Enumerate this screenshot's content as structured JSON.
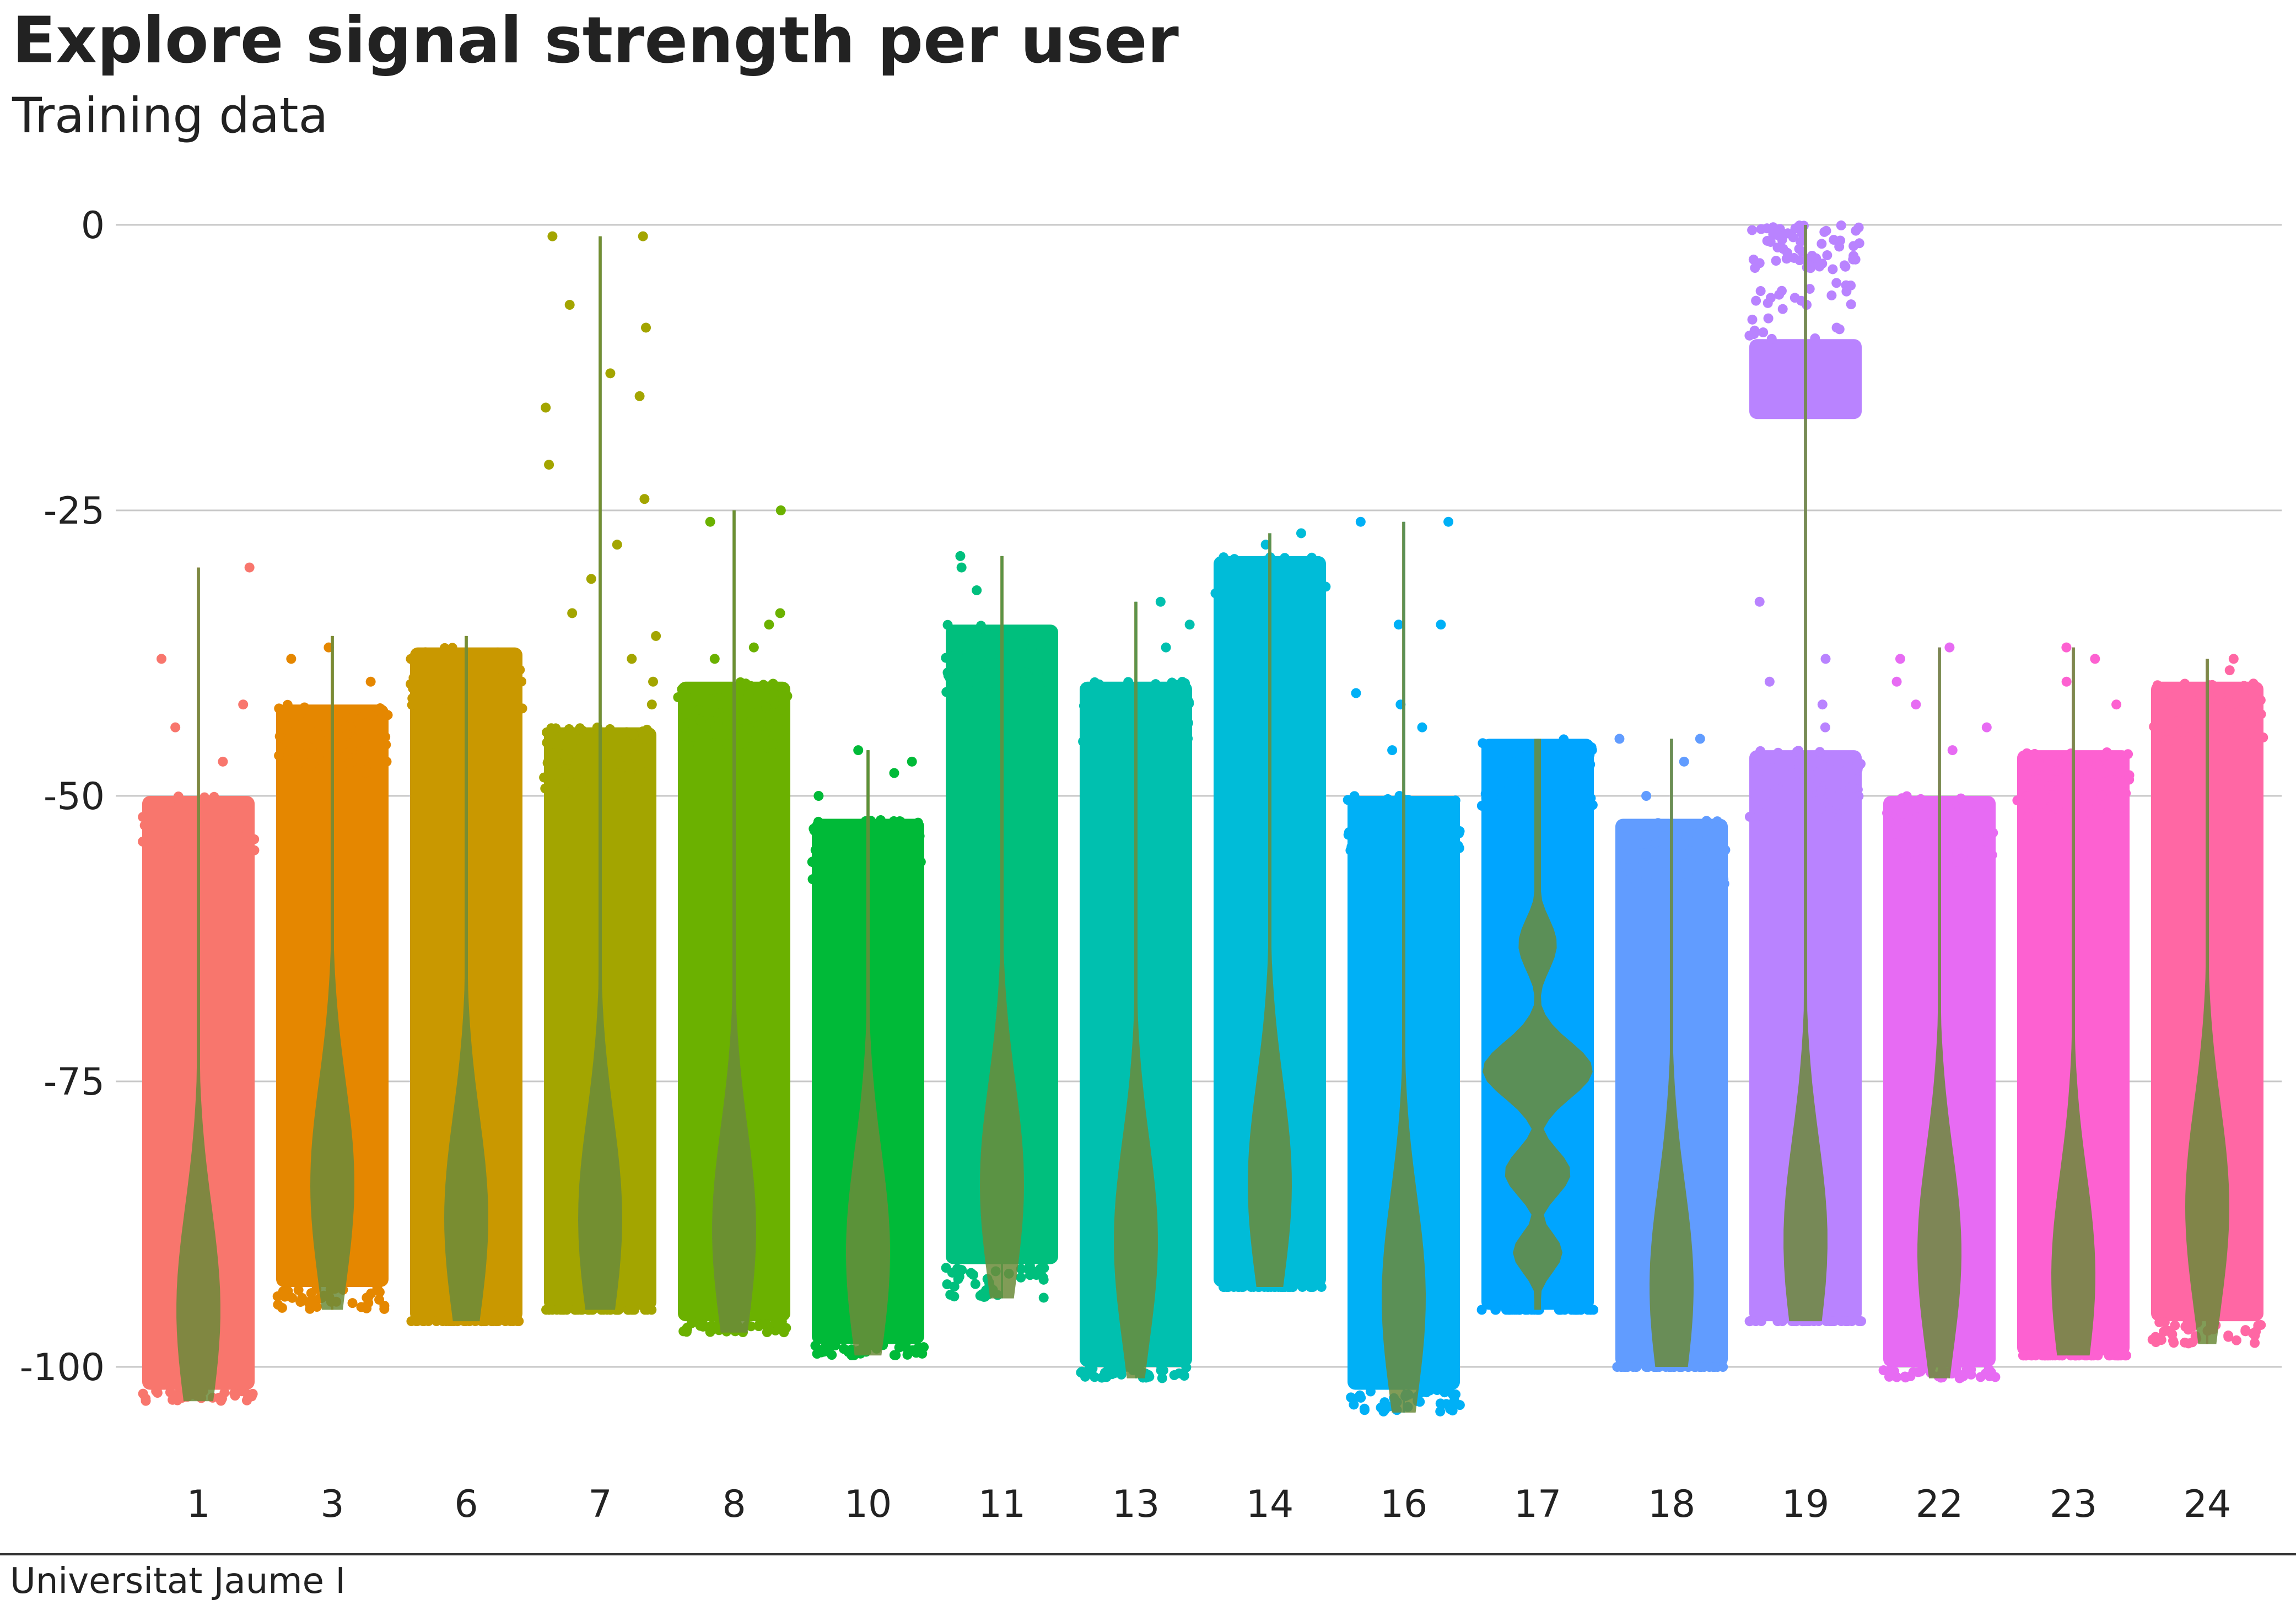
{
  "chart_data": {
    "type": "violin",
    "title": "Explore signal strength per user",
    "subtitle": "Training data",
    "xlabel": "",
    "ylabel": "",
    "caption": "Universitat Jaume I",
    "ylim": [
      -107,
      2
    ],
    "yticks": [
      0,
      -25,
      -50,
      -75,
      -100
    ],
    "categories": [
      "1",
      "3",
      "6",
      "7",
      "8",
      "10",
      "11",
      "13",
      "14",
      "16",
      "17",
      "18",
      "19",
      "22",
      "23",
      "24"
    ],
    "colors": [
      "#F8766D",
      "#E58700",
      "#C99800",
      "#A3A500",
      "#6BB100",
      "#00BA38",
      "#00BF7D",
      "#00C0AF",
      "#00BCD8",
      "#00B0F6",
      "#00A5FF",
      "#619CFF",
      "#B983FF",
      "#E76BF3",
      "#FD61D1",
      "#FF67A4"
    ],
    "violin_color": "#6B8B3A",
    "series": [
      {
        "name": "1",
        "min": -103,
        "max": -30,
        "bulk_top": -50,
        "bulk_bottom": -102,
        "mode": -95,
        "outliers": [
          -38,
          -42,
          -44,
          -30,
          -47
        ]
      },
      {
        "name": "3",
        "min": -95,
        "max": -36,
        "bulk_top": -42,
        "bulk_bottom": -93,
        "mode": -84,
        "outliers": [
          -37,
          -38,
          -40
        ]
      },
      {
        "name": "6",
        "min": -96,
        "max": -36,
        "bulk_top": -37,
        "bulk_bottom": -96,
        "mode": -87,
        "outliers": []
      },
      {
        "name": "7",
        "min": -95,
        "max": -1,
        "bulk_top": -44,
        "bulk_bottom": -95,
        "mode": -87,
        "outliers": [
          -1,
          -1,
          -7,
          -15,
          -16,
          -21,
          -24,
          -28,
          -31,
          -34,
          -36,
          -38,
          -40,
          -42,
          -13,
          -9
        ]
      },
      {
        "name": "8",
        "min": -97,
        "max": -25,
        "bulk_top": -40,
        "bulk_bottom": -96,
        "mode": -88,
        "outliers": [
          -25,
          -26,
          -34,
          -35,
          -37,
          -38
        ]
      },
      {
        "name": "10",
        "min": -99,
        "max": -46,
        "bulk_top": -52,
        "bulk_bottom": -98,
        "mode": -90,
        "outliers": [
          -46,
          -47,
          -48,
          -50
        ]
      },
      {
        "name": "11",
        "min": -94,
        "max": -29,
        "bulk_top": -35,
        "bulk_bottom": -91,
        "mode": -84,
        "outliers": [
          -29,
          -30,
          -32
        ]
      },
      {
        "name": "13",
        "min": -101,
        "max": -33,
        "bulk_top": -40,
        "bulk_bottom": -100,
        "mode": -89,
        "outliers": [
          -33,
          -35,
          -37
        ]
      },
      {
        "name": "14",
        "min": -93,
        "max": -27,
        "bulk_top": -29,
        "bulk_bottom": -93,
        "mode": -84,
        "outliers": [
          -27,
          -28
        ]
      },
      {
        "name": "16",
        "min": -104,
        "max": -26,
        "bulk_top": -50,
        "bulk_bottom": -102,
        "mode": -94,
        "outliers": [
          -26,
          -26,
          -35,
          -35,
          -41,
          -42,
          -44,
          -46
        ]
      },
      {
        "name": "17",
        "min": -95,
        "max": -45,
        "bulk_top": -45,
        "bulk_bottom": -95,
        "mode": -74,
        "outliers": []
      },
      {
        "name": "18",
        "min": -100,
        "max": -45,
        "bulk_top": -52,
        "bulk_bottom": -100,
        "mode": -93,
        "outliers": [
          -45,
          -45,
          -47,
          -50
        ]
      },
      {
        "name": "19",
        "min": -96,
        "max": 0,
        "bulk_top": -46,
        "bulk_bottom": -96,
        "mode": -89,
        "outliers": [
          -33,
          -38,
          -40,
          -42,
          -44,
          -7,
          -9
        ]
      },
      {
        "name": "22",
        "min": -101,
        "max": -37,
        "bulk_top": -50,
        "bulk_bottom": -100,
        "mode": -90,
        "outliers": [
          -37,
          -38,
          -40,
          -42,
          -44,
          -46
        ]
      },
      {
        "name": "23",
        "min": -99,
        "max": -37,
        "bulk_top": -46,
        "bulk_bottom": -99,
        "mode": -92,
        "outliers": [
          -37,
          -38,
          -40,
          -42
        ]
      },
      {
        "name": "24",
        "min": -98,
        "max": -38,
        "bulk_top": -40,
        "bulk_bottom": -96,
        "mode": -86,
        "outliers": [
          -38,
          -39
        ]
      }
    ],
    "user19_upper_cluster": {
      "top": 0,
      "bottom": -18,
      "dense_top": -10,
      "dense_bottom": -17
    },
    "grid": true,
    "legend": "none"
  }
}
